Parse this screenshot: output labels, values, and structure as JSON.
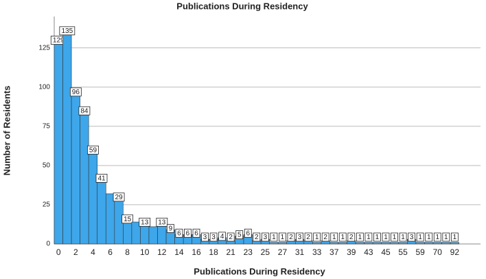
{
  "chart_data": {
    "type": "bar",
    "title": "Publications During Residency",
    "x_label": "Publications During Residency",
    "y_label": "Number of Residents",
    "categories": [
      "0",
      null,
      "2",
      null,
      "4",
      null,
      "6",
      null,
      "8",
      null,
      "10",
      null,
      "12",
      null,
      "14",
      null,
      "16",
      null,
      "18",
      null,
      "21",
      null,
      "23",
      null,
      "25",
      null,
      "27",
      null,
      "31",
      null,
      "33",
      null,
      "37",
      null,
      "39",
      null,
      "43",
      null,
      "45",
      null,
      "55",
      null,
      "59",
      null,
      "70",
      null,
      "92"
    ],
    "values": [
      129,
      135,
      96,
      84,
      59,
      41,
      32,
      29,
      15,
      14,
      13,
      11,
      13,
      9,
      6,
      6,
      6,
      3,
      3,
      4,
      2,
      5,
      6,
      2,
      3,
      1,
      1,
      2,
      3,
      2,
      1,
      2,
      1,
      1,
      2,
      1,
      1,
      1,
      1,
      1,
      1,
      3,
      1,
      1,
      1,
      1,
      1
    ],
    "value_labels": [
      "129",
      "135",
      "96",
      "84",
      "59",
      "41",
      null,
      "29",
      "15",
      null,
      "13",
      null,
      "13",
      "9",
      "6",
      "6",
      "6",
      "3",
      "3",
      "4",
      "2",
      "5",
      "6",
      "2",
      "3",
      "1",
      "1",
      "2",
      "3",
      "2",
      "1",
      "2",
      "1",
      "1",
      "2",
      "1",
      "1",
      "1",
      "1",
      "1",
      "1",
      "3",
      "1",
      "1",
      "1",
      "1",
      "1"
    ],
    "color": "#3ea6ea",
    "ylim": [
      0,
      145
    ],
    "yticks": [
      0,
      25,
      50,
      75,
      100,
      125
    ],
    "grid": true
  }
}
